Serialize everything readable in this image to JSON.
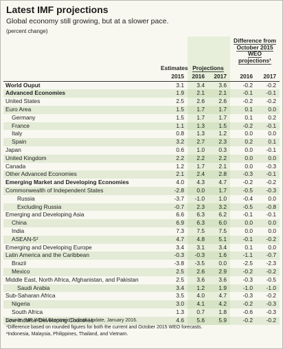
{
  "header": {
    "title": "Latest IMF projections",
    "subtitle": "Global economy still growing, but at a slower pace.",
    "note": "(percent change)"
  },
  "table": {
    "column_groups": [
      "Estimates",
      "Projections",
      "Difference from October 2015 WEO projections¹"
    ],
    "years": [
      "2015",
      "2016",
      "2017",
      "2016",
      "2017"
    ],
    "rows": [
      [
        "World Ouput",
        "3.1",
        "3.4",
        "3.6",
        "-0.2",
        "-0.2"
      ],
      [
        "Advanced Economies",
        "1.9",
        "2.1",
        "2.1",
        "-0.1",
        "-0.1"
      ],
      [
        "United States",
        "2.5",
        "2.6",
        "2.6",
        "-0.2",
        "-0.2"
      ],
      [
        "Euro Area",
        "1.5",
        "1.7",
        "1.7",
        "0.1",
        "0.0"
      ],
      [
        "Germany",
        "1.5",
        "1.7",
        "1.7",
        "0.1",
        "0.2"
      ],
      [
        "France",
        "1.1",
        "1.3",
        "1.5",
        "-0.2",
        "-0.1"
      ],
      [
        "Italy",
        "0.8",
        "1.3",
        "1.2",
        "0.0",
        "0.0"
      ],
      [
        "Spain",
        "3.2",
        "2.7",
        "2.3",
        "0.2",
        "0.1"
      ],
      [
        "Japan",
        "0.6",
        "1.0",
        "0.3",
        "0.0",
        "-0.1"
      ],
      [
        "United Kingdom",
        "2.2",
        "2.2",
        "2.2",
        "0.0",
        "0.0"
      ],
      [
        "Canada",
        "1.2",
        "1.7",
        "2.1",
        "0.0",
        "-0.3"
      ],
      [
        "Other Advanced Economies",
        "2.1",
        "2.4",
        "2.8",
        "-0.3",
        "-0.1"
      ],
      [
        "Emerging Market and Developing Economies",
        "4.0",
        "4.3",
        "4.7",
        "-0.2",
        "-0.2"
      ],
      [
        "Commonwealth of Independent States",
        "-2.8",
        "0.0",
        "1.7",
        "-0.5",
        "-0.3"
      ],
      [
        "Russia",
        "-3.7",
        "-1.0",
        "1.0",
        "-0.4",
        "0.0"
      ],
      [
        "Excluding Russia",
        "-0.7",
        "2.3",
        "3.2",
        "-0.5",
        "-0.8"
      ],
      [
        "Emerging and Developing Asia",
        "6.6",
        "6.3",
        "6.2",
        "-0.1",
        "-0.1"
      ],
      [
        "China",
        "6.9",
        "6.3",
        "6.0",
        "0.0",
        "0.0"
      ],
      [
        "India",
        "7.3",
        "7.5",
        "7.5",
        "0.0",
        "0.0"
      ],
      [
        "ASEAN-5²",
        "4.7",
        "4.8",
        "5.1",
        "-0.1",
        "-0.2"
      ],
      [
        "Emerging and Developing Europe",
        "3.4",
        "3.1",
        "3.4",
        "0.1",
        "0.0"
      ],
      [
        "Latin America and the Caribbean",
        "-0.3",
        "-0.3",
        "1.6",
        "-1.1",
        "-0.7"
      ],
      [
        "Brazil",
        "-3.8",
        "-3.5",
        "0.0",
        "-2.5",
        "-2.3"
      ],
      [
        "Mexico",
        "2.5",
        "2.6",
        "2.9",
        "-0.2",
        "-0.2"
      ],
      [
        "Middle East, North Africa, Afghanistan, and Pakistan",
        "2.5",
        "3.6",
        "3.6",
        "-0.3",
        "-0.5"
      ],
      [
        "Saudi Arabia",
        "3.4",
        "1.2",
        "1.9",
        "-1.0",
        "-1.0"
      ],
      [
        "Sub-Saharan Africa",
        "3.5",
        "4.0",
        "4.7",
        "-0.3",
        "-0.2"
      ],
      [
        "Nigeria",
        "3.0",
        "4.1",
        "4.2",
        "-0.2",
        "-0.3"
      ],
      [
        "South Africa",
        "1.3",
        "0.7",
        "1.8",
        "-0.6",
        "-0.3"
      ],
      [
        "Low-Income Developing Countries",
        "4.6",
        "5.6",
        "5.9",
        "-0.2",
        "-0.2"
      ]
    ]
  },
  "footnotes": [
    "Source: IMF, World Economic Outlook Update, January 2016.",
    "¹Difference based on rounded figures for both the current and October 2015 WEO forecasts.",
    "²Indonesia, Malaysia, Philippines, Thailand, and Vietnam."
  ]
}
